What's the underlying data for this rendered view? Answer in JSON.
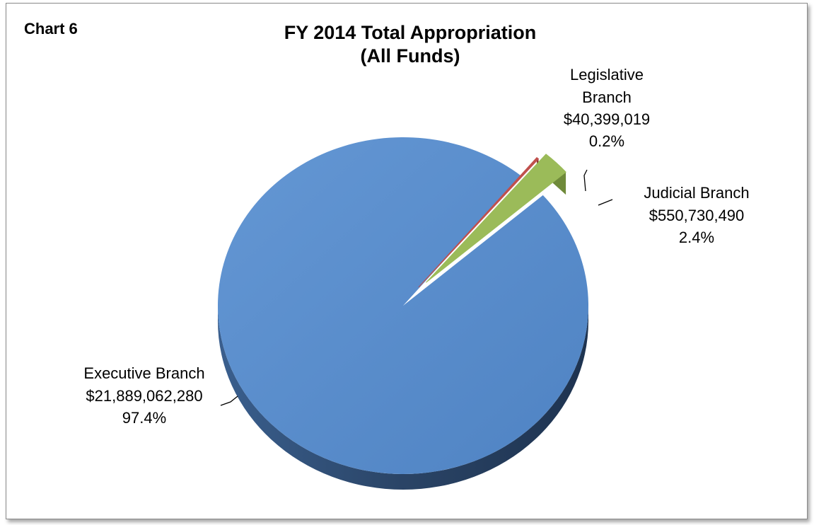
{
  "chart_tag": "Chart 6",
  "chart_data": {
    "type": "pie",
    "title": [
      "FY 2014 Total Appropriation",
      "(All Funds)"
    ],
    "slices": [
      {
        "name": "Executive Branch",
        "value_label": "$21,889,062,280",
        "percent_label": "97.4%",
        "percent": 97.4,
        "color": "#5b8ccb"
      },
      {
        "name": "Legislative Branch",
        "value_label": "$40,399,019",
        "percent_label": "0.2%",
        "percent": 0.2,
        "color": "#c0504d"
      },
      {
        "name": "Judicial Branch",
        "value_label": "$550,730,490",
        "percent_label": "2.4%",
        "percent": 2.4,
        "color": "#9bbb59"
      }
    ],
    "legend": "none"
  }
}
